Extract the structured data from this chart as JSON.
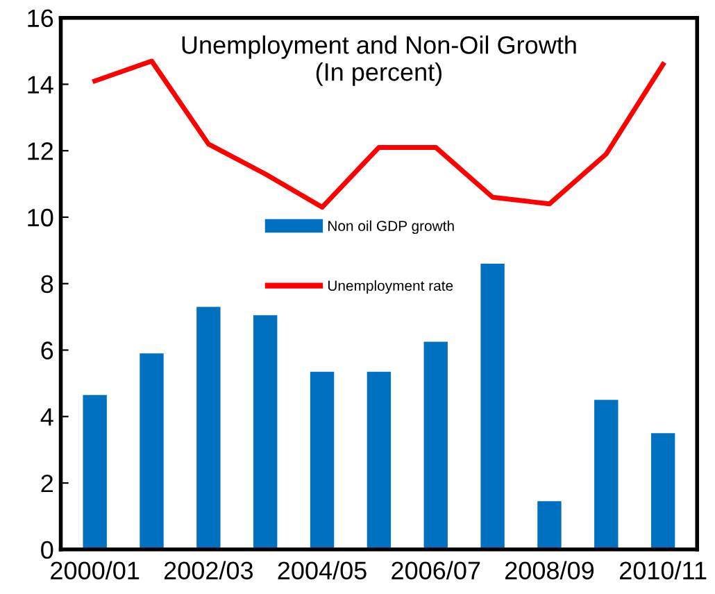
{
  "chart_data": {
    "type": "bar",
    "title": "Unemployment and Non-Oil Growth\n(In percent)",
    "categories": [
      "2000/01",
      null,
      "2002/03",
      null,
      "2004/05",
      null,
      "2006/07",
      null,
      "2008/09",
      null,
      "2010/11"
    ],
    "series": [
      {
        "name": "Non oil GDP growth",
        "color": "#0070c0",
        "values": [
          4.65,
          5.9,
          7.3,
          7.05,
          5.35,
          5.35,
          6.25,
          8.6,
          1.45,
          4.5,
          3.5
        ]
      },
      {
        "name": "Unemployment rate",
        "type": "line",
        "color": "#ff0000",
        "values": [
          14.1,
          14.7,
          12.2,
          11.3,
          10.3,
          12.1,
          12.1,
          10.6,
          10.4,
          11.9,
          14.6
        ]
      }
    ],
    "ylim": [
      0,
      16
    ],
    "yticks": [
      0,
      2,
      4,
      6,
      8,
      10,
      12,
      14,
      16
    ],
    "grid": false,
    "legend": "center"
  }
}
